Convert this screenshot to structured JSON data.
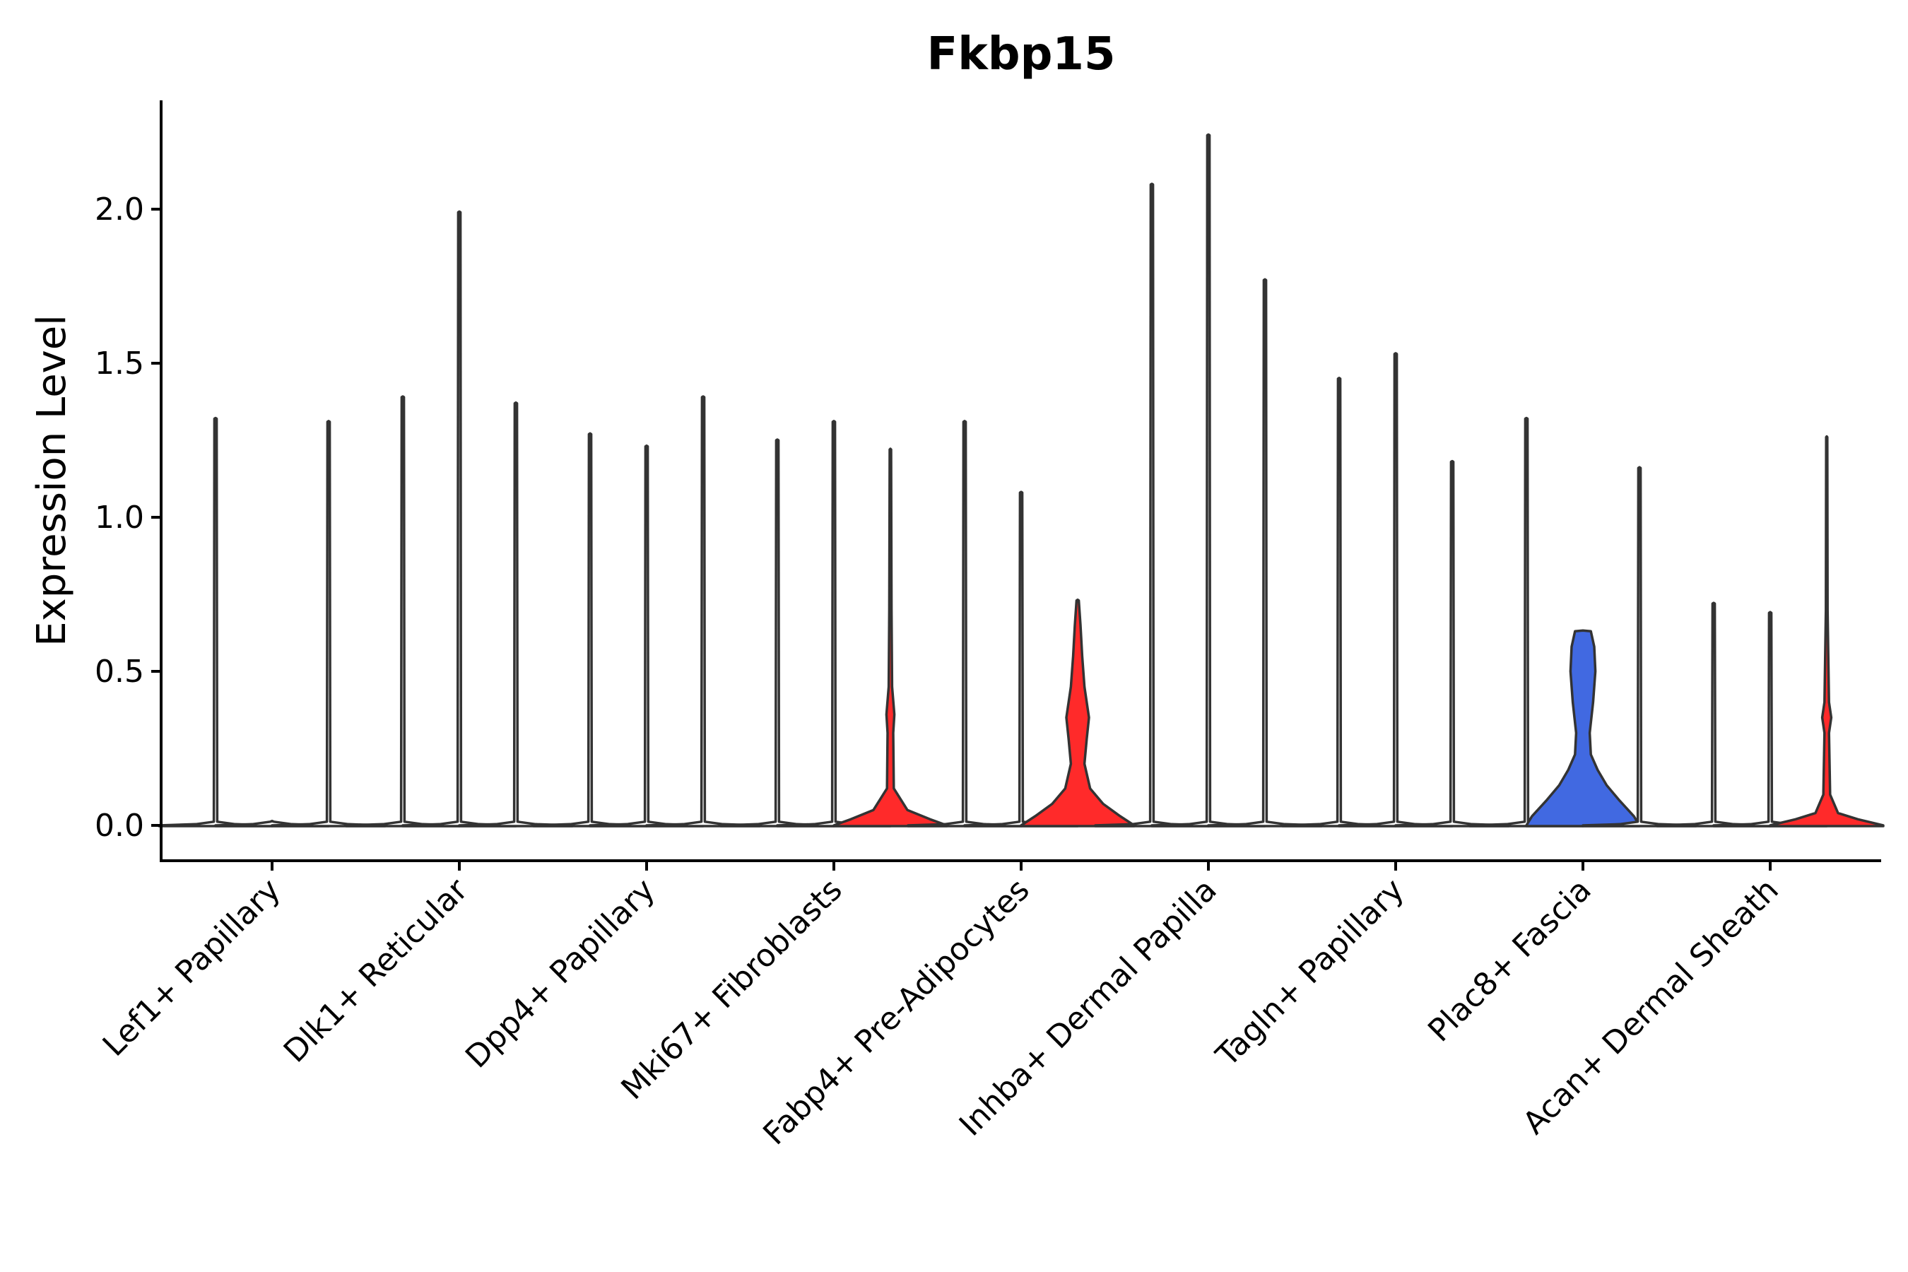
{
  "chart_data": {
    "type": "violin",
    "title": "Fkbp15",
    "ylabel": "Expression Level",
    "xlabel": "",
    "ylim": [
      -0.11,
      2.35
    ],
    "yticks": [
      0.0,
      0.5,
      1.0,
      1.5,
      2.0
    ],
    "ytick_labels": [
      "0.0",
      "0.5",
      "1.0",
      "1.5",
      "2.0"
    ],
    "categories": [
      "Lef1+ Papillary",
      "Dlk1+ Reticular",
      "Dpp4+ Papillary",
      "Mki67+ Fibroblasts",
      "Fabp4+ Pre-Adipocytes",
      "Inhba+ Dermal Papilla",
      "Tagln+ Papillary",
      "Plac8+ Fascia",
      "Acan+ Dermal Sheath"
    ],
    "groups_per_category": 3,
    "series": [
      {
        "category": "Lef1+ Papillary",
        "group": 0,
        "max": 1.32,
        "fill": "#ffffff",
        "profile": []
      },
      {
        "category": "Lef1+ Papillary",
        "group": 1,
        "max": 0.0,
        "fill": "#ffffff",
        "profile": []
      },
      {
        "category": "Lef1+ Papillary",
        "group": 2,
        "max": 1.31,
        "fill": "#ffffff",
        "profile": []
      },
      {
        "category": "Dlk1+ Reticular",
        "group": 0,
        "max": 1.39,
        "fill": "#ffffff",
        "profile": []
      },
      {
        "category": "Dlk1+ Reticular",
        "group": 1,
        "max": 1.99,
        "fill": "#ffffff",
        "profile": []
      },
      {
        "category": "Dlk1+ Reticular",
        "group": 2,
        "max": 1.37,
        "fill": "#ffffff",
        "profile": []
      },
      {
        "category": "Dpp4+ Papillary",
        "group": 0,
        "max": 1.27,
        "fill": "#ffffff",
        "profile": []
      },
      {
        "category": "Dpp4+ Papillary",
        "group": 1,
        "max": 1.23,
        "fill": "#ffffff",
        "profile": []
      },
      {
        "category": "Dpp4+ Papillary",
        "group": 2,
        "max": 1.39,
        "fill": "#ffffff",
        "profile": []
      },
      {
        "category": "Mki67+ Fibroblasts",
        "group": 0,
        "max": 1.25,
        "fill": "#ffffff",
        "profile": []
      },
      {
        "category": "Mki67+ Fibroblasts",
        "group": 1,
        "max": 1.31,
        "fill": "#ffffff",
        "profile": []
      },
      {
        "category": "Mki67+ Fibroblasts",
        "group": 2,
        "max": 1.22,
        "fill": "#ff2a2a",
        "profile": [
          [
            0.0,
            1.0
          ],
          [
            0.02,
            0.7
          ],
          [
            0.05,
            0.3
          ],
          [
            0.12,
            0.06
          ],
          [
            0.3,
            0.05
          ],
          [
            0.36,
            0.07
          ],
          [
            0.45,
            0.03
          ],
          [
            0.7,
            0.02
          ],
          [
            1.22,
            0.012
          ]
        ]
      },
      {
        "category": "Fabp4+ Pre-Adipocytes",
        "group": 0,
        "max": 1.31,
        "fill": "#ffffff",
        "profile": []
      },
      {
        "category": "Fabp4+ Pre-Adipocytes",
        "group": 1,
        "max": 1.08,
        "fill": "#ffffff",
        "profile": []
      },
      {
        "category": "Fabp4+ Pre-Adipocytes",
        "group": 2,
        "max": 0.74,
        "fill": "#ff2a2a",
        "profile": [
          [
            0.0,
            1.0
          ],
          [
            0.03,
            0.75
          ],
          [
            0.07,
            0.45
          ],
          [
            0.12,
            0.22
          ],
          [
            0.2,
            0.12
          ],
          [
            0.28,
            0.16
          ],
          [
            0.35,
            0.2
          ],
          [
            0.45,
            0.12
          ],
          [
            0.55,
            0.08
          ],
          [
            0.65,
            0.05
          ],
          [
            0.73,
            0.02
          ]
        ]
      },
      {
        "category": "Inhba+ Dermal Papilla",
        "group": 0,
        "max": 2.08,
        "fill": "#ffffff",
        "profile": []
      },
      {
        "category": "Inhba+ Dermal Papilla",
        "group": 1,
        "max": 2.24,
        "fill": "#ffffff",
        "profile": []
      },
      {
        "category": "Inhba+ Dermal Papilla",
        "group": 2,
        "max": 1.77,
        "fill": "#ffffff",
        "profile": []
      },
      {
        "category": "Tagln+ Papillary",
        "group": 0,
        "max": 1.45,
        "fill": "#ffffff",
        "profile": []
      },
      {
        "category": "Tagln+ Papillary",
        "group": 1,
        "max": 1.53,
        "fill": "#ffffff",
        "profile": []
      },
      {
        "category": "Tagln+ Papillary",
        "group": 2,
        "max": 1.18,
        "fill": "#ffffff",
        "profile": []
      },
      {
        "category": "Plac8+ Fascia",
        "group": 0,
        "max": 1.32,
        "fill": "#ffffff",
        "profile": []
      },
      {
        "category": "Plac8+ Fascia",
        "group": 1,
        "max": 0.63,
        "fill": "#4169e1",
        "profile": [
          [
            0.0,
            1.0
          ],
          [
            0.03,
            0.9
          ],
          [
            0.08,
            0.65
          ],
          [
            0.13,
            0.42
          ],
          [
            0.18,
            0.26
          ],
          [
            0.23,
            0.14
          ],
          [
            0.3,
            0.12
          ],
          [
            0.4,
            0.18
          ],
          [
            0.5,
            0.22
          ],
          [
            0.58,
            0.2
          ],
          [
            0.63,
            0.14
          ]
        ]
      },
      {
        "category": "Plac8+ Fascia",
        "group": 2,
        "max": 1.16,
        "fill": "#ffffff",
        "profile": []
      },
      {
        "category": "Acan+ Dermal Sheath",
        "group": 0,
        "max": 0.72,
        "fill": "#ffffff",
        "profile": []
      },
      {
        "category": "Acan+ Dermal Sheath",
        "group": 1,
        "max": 0.69,
        "fill": "#ffffff",
        "profile": []
      },
      {
        "category": "Acan+ Dermal Sheath",
        "group": 2,
        "max": 1.26,
        "fill": "#ff2a2a",
        "profile": [
          [
            0.0,
            1.0
          ],
          [
            0.02,
            0.55
          ],
          [
            0.04,
            0.2
          ],
          [
            0.1,
            0.06
          ],
          [
            0.3,
            0.04
          ],
          [
            0.35,
            0.08
          ],
          [
            0.4,
            0.04
          ],
          [
            0.7,
            0.015
          ],
          [
            1.26,
            0.01
          ]
        ]
      }
    ]
  }
}
